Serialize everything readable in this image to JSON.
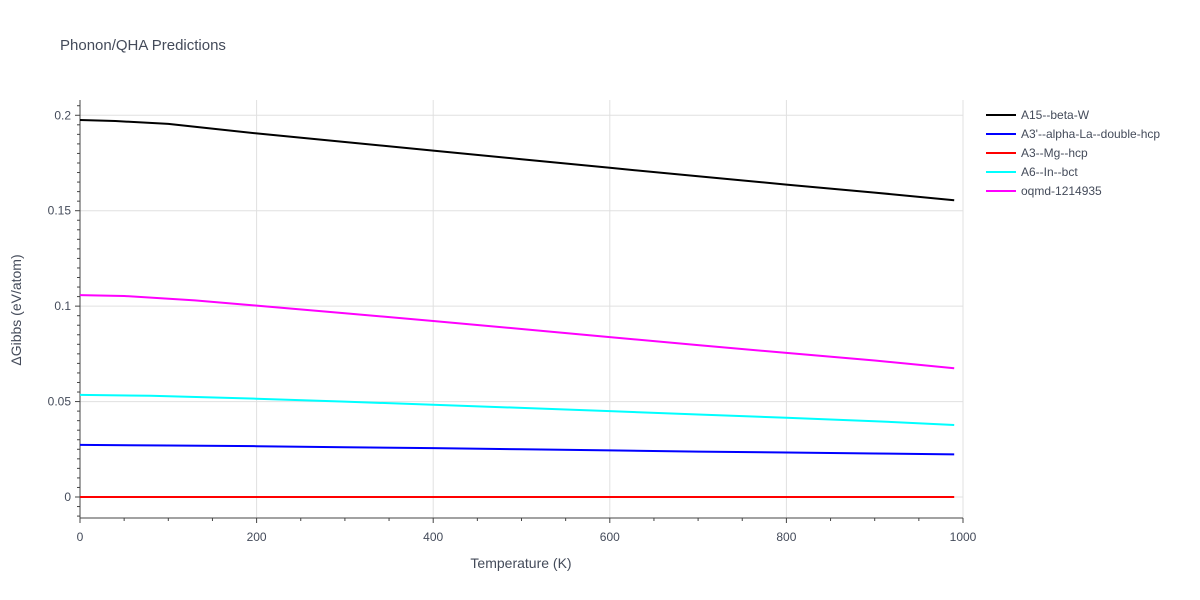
{
  "chart_data": {
    "type": "line",
    "title": "Phonon/QHA Predictions",
    "xlabel": "Temperature (K)",
    "ylabel": "ΔGibbs (eV/atom)",
    "xlim": [
      0,
      1000
    ],
    "ylim": [
      -0.011,
      0.208
    ],
    "xticks": [
      0,
      200,
      400,
      600,
      800,
      1000
    ],
    "yticks": [
      0,
      0.05,
      0.1,
      0.15,
      0.2
    ],
    "xtick_labels": [
      "0",
      "200",
      "400",
      "600",
      "800",
      "1000"
    ],
    "ytick_labels": [
      "0",
      "0.05",
      "0.1",
      "0.15",
      "0.2"
    ],
    "grid": true,
    "legend_position": "top-right",
    "series": [
      {
        "name": "A15--beta-W",
        "color": "#000000",
        "x": [
          0,
          40,
          100,
          200,
          300,
          400,
          500,
          600,
          700,
          800,
          900,
          990
        ],
        "y": [
          0.1975,
          0.197,
          0.1955,
          0.1905,
          0.186,
          0.1815,
          0.177,
          0.1725,
          0.168,
          0.1637,
          0.1595,
          0.1555
        ]
      },
      {
        "name": "A3'--alpha-La--double-hcp",
        "color": "#0000ff",
        "x": [
          0,
          100,
          200,
          300,
          400,
          500,
          600,
          700,
          800,
          900,
          990
        ],
        "y": [
          0.0273,
          0.027,
          0.0266,
          0.0261,
          0.0256,
          0.025,
          0.0244,
          0.0238,
          0.0233,
          0.0228,
          0.0223
        ]
      },
      {
        "name": "A3--Mg--hcp",
        "color": "#ff0000",
        "x": [
          0,
          200,
          400,
          600,
          800,
          990
        ],
        "y": [
          0,
          0,
          0,
          0,
          0,
          0
        ]
      },
      {
        "name": "A6--In--bct",
        "color": "#00ffff",
        "x": [
          0,
          80,
          200,
          300,
          400,
          500,
          600,
          700,
          800,
          900,
          990
        ],
        "y": [
          0.0535,
          0.053,
          0.0515,
          0.05,
          0.0483,
          0.0467,
          0.045,
          0.0432,
          0.0415,
          0.0397,
          0.0377
        ]
      },
      {
        "name": "oqmd-1214935",
        "color": "#ff00ff",
        "x": [
          0,
          50,
          130,
          200,
          300,
          400,
          500,
          600,
          700,
          800,
          900,
          990
        ],
        "y": [
          0.1058,
          0.1053,
          0.103,
          0.1003,
          0.0963,
          0.0922,
          0.088,
          0.0838,
          0.0796,
          0.0755,
          0.0715,
          0.0675
        ]
      }
    ]
  }
}
